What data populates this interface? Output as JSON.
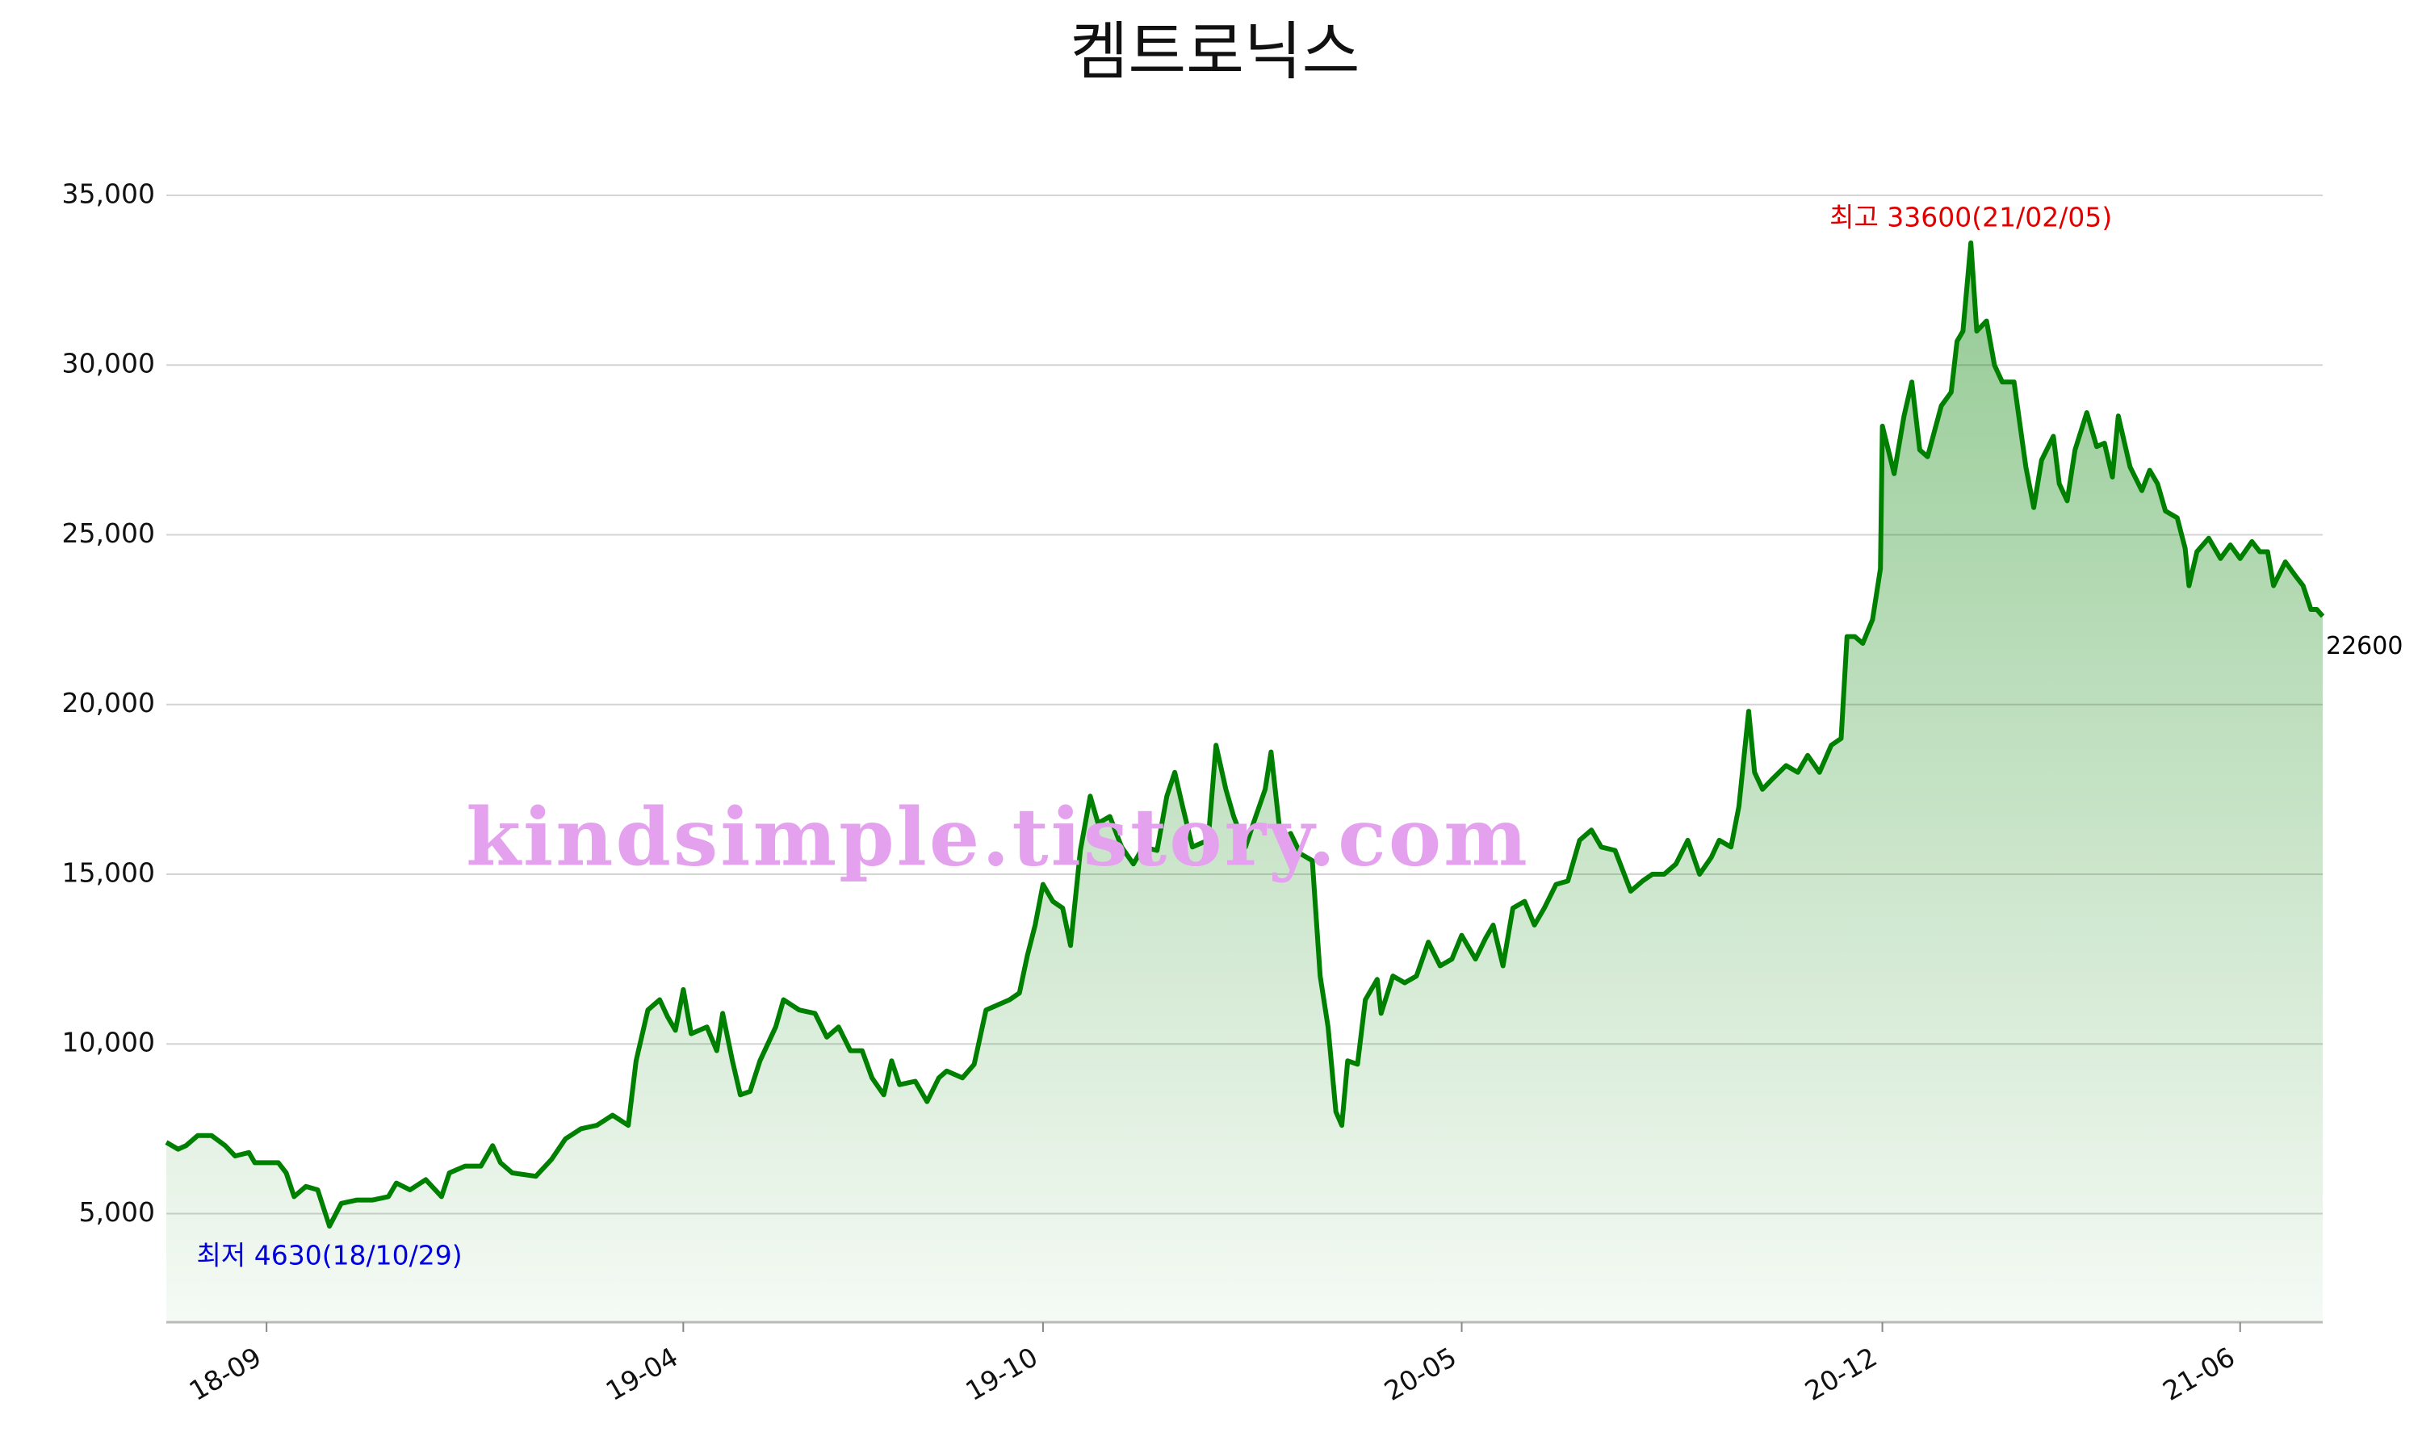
{
  "chart_data": {
    "type": "line",
    "title": "켐트로닉스",
    "x": [
      "18-07-12",
      "18-07-18",
      "18-07-22",
      "18-07-28",
      "18-08-04",
      "18-08-11",
      "18-08-16",
      "18-08-23",
      "18-08-26",
      "18-09-07",
      "18-09-11",
      "18-09-15",
      "18-09-21",
      "18-09-27",
      "18-10-03",
      "18-10-09",
      "18-10-17",
      "18-10-25",
      "18-11-02",
      "18-11-06",
      "18-11-13",
      "18-11-21",
      "18-11-29",
      "18-12-03",
      "18-12-11",
      "18-12-19",
      "18-12-25",
      "18-12-29",
      "19-01-04",
      "19-01-16",
      "19-01-24",
      "19-01-31",
      "19-02-08",
      "19-02-16",
      "19-02-24",
      "19-03-04",
      "19-03-08",
      "19-03-14",
      "19-03-20",
      "19-03-24",
      "19-03-28",
      "19-04-01",
      "19-04-05",
      "19-04-13",
      "19-04-18",
      "19-04-21",
      "19-04-26",
      "19-04-30",
      "19-05-05",
      "19-05-10",
      "19-05-18",
      "19-05-22",
      "19-05-30",
      "19-06-07",
      "19-06-13",
      "19-06-19",
      "19-06-25",
      "19-07-01",
      "19-07-06",
      "19-07-12",
      "19-07-16",
      "19-07-20",
      "19-07-28",
      "19-08-03",
      "19-08-09",
      "19-08-13",
      "19-08-21",
      "19-08-27",
      "19-09-02",
      "19-09-14",
      "19-09-19",
      "19-09-23",
      "19-09-27",
      "19-10-01",
      "19-10-06",
      "19-10-11",
      "19-10-15",
      "19-10-20",
      "19-10-25",
      "19-10-29",
      "19-11-04",
      "19-11-10",
      "19-11-16",
      "19-11-21",
      "19-11-28",
      "19-12-03",
      "19-12-07",
      "19-12-11",
      "19-12-16",
      "19-12-24",
      "19-12-28",
      "20-01-02",
      "20-01-06",
      "20-01-12",
      "20-01-16",
      "20-01-22",
      "20-01-25",
      "20-01-30",
      "20-02-04",
      "20-02-09",
      "20-02-15",
      "20-02-19",
      "20-02-23",
      "20-02-27",
      "20-03-01",
      "20-03-04",
      "20-03-09",
      "20-03-13",
      "20-03-19",
      "20-03-21",
      "20-03-27",
      "20-04-02",
      "20-04-08",
      "20-04-14",
      "20-04-20",
      "20-04-26",
      "20-05-01",
      "20-05-08",
      "20-05-13",
      "20-05-17",
      "20-05-22",
      "20-05-27",
      "20-06-02",
      "20-06-07",
      "20-06-12",
      "20-06-18",
      "20-06-24",
      "20-06-30",
      "20-07-06",
      "20-07-11",
      "20-07-18",
      "20-07-26",
      "20-08-01",
      "20-08-06",
      "20-08-12",
      "20-08-18",
      "20-08-24",
      "20-08-30",
      "20-09-05",
      "20-09-09",
      "20-09-15",
      "20-09-19",
      "20-09-24",
      "20-09-27",
      "20-10-01",
      "20-10-06",
      "20-10-13",
      "20-10-19",
      "20-10-24",
      "20-10-30",
      "20-11-05",
      "20-11-10",
      "20-11-13",
      "20-11-17",
      "20-11-21",
      "20-11-26",
      "20-11-30",
      "20-12-01",
      "20-12-07",
      "20-12-12",
      "20-12-16",
      "20-12-20",
      "20-12-24",
      "20-12-31",
      "21-01-05",
      "21-01-08",
      "21-01-11",
      "21-01-15",
      "21-01-18",
      "21-01-23",
      "21-01-27",
      "21-01-31",
      "21-02-06",
      "21-02-12",
      "21-02-16",
      "21-02-20",
      "21-02-26",
      "21-03-01",
      "21-03-05",
      "21-03-09",
      "21-03-15",
      "21-03-20",
      "21-03-24",
      "21-03-28",
      "21-03-31",
      "21-04-06",
      "21-04-12",
      "21-04-16",
      "21-04-20",
      "21-04-24",
      "21-04-30",
      "21-05-04",
      "21-05-06",
      "21-05-10",
      "21-05-16",
      "21-05-22",
      "21-05-27",
      "21-06-01",
      "21-06-07",
      "21-06-11",
      "21-06-15",
      "21-06-18",
      "21-06-24",
      "21-06-29",
      "21-07-03",
      "21-07-07",
      "21-07-10",
      "21-07-13"
    ],
    "series": [
      {
        "name": "켐트로닉스",
        "color": "#008000",
        "values": [
          7100,
          6900,
          7000,
          7300,
          7300,
          7000,
          6700,
          6800,
          6500,
          6500,
          6200,
          5500,
          5800,
          5700,
          4630,
          5300,
          5400,
          5400,
          5500,
          5900,
          5700,
          6000,
          5500,
          6200,
          6400,
          6400,
          7000,
          6500,
          6200,
          6100,
          6600,
          7200,
          7500,
          7600,
          7900,
          7600,
          9500,
          11000,
          11300,
          10800,
          10400,
          11600,
          10300,
          10500,
          9800,
          10900,
          9500,
          8500,
          8600,
          9500,
          10500,
          11300,
          11000,
          10900,
          10200,
          10500,
          9800,
          9800,
          9000,
          8500,
          9500,
          8800,
          8900,
          8300,
          9000,
          9200,
          9000,
          9400,
          11000,
          11300,
          11500,
          12600,
          13500,
          14700,
          14200,
          14000,
          12900,
          15700,
          17300,
          16500,
          16700,
          15800,
          15300,
          15800,
          15700,
          17300,
          18000,
          17000,
          15800,
          16000,
          18800,
          17500,
          16700,
          15800,
          16500,
          17500,
          18600,
          16000,
          16200,
          15600,
          15400,
          12000,
          10500,
          8000,
          7600,
          9500,
          9400,
          11300,
          11900,
          10900,
          12000,
          11800,
          12000,
          13000,
          12300,
          12500,
          13200,
          12500,
          13100,
          13500,
          12300,
          14000,
          14200,
          13500,
          14000,
          14700,
          14800,
          16000,
          16300,
          15800,
          15700,
          14500,
          14800,
          15000,
          15000,
          15300,
          16000,
          15000,
          15500,
          16000,
          15800,
          17000,
          19800,
          18000,
          17500,
          17800,
          18200,
          18000,
          18500,
          18000,
          18800,
          19000,
          22000,
          22000,
          21800,
          22500,
          24000,
          28200,
          26800,
          28500,
          29500,
          27500,
          27300,
          28800,
          29200,
          30700,
          31000,
          33600,
          31000,
          31300,
          30000,
          29500,
          29500,
          27000,
          25800,
          27200,
          27900,
          26500,
          26000,
          27500,
          28600,
          27600,
          27700,
          26700,
          28500,
          27000,
          26300,
          26900,
          26500,
          25700,
          25500,
          24600,
          23500,
          24500,
          24900,
          24300,
          24700,
          24300,
          24800,
          24500,
          24500,
          23500,
          24200,
          23800,
          23500,
          22800,
          22800,
          22600
        ]
      }
    ],
    "xlim": [
      "18-07-12",
      "21-07-13"
    ],
    "xticks": [
      "18-09",
      "19-04",
      "19-10",
      "20-05",
      "20-12",
      "21-06"
    ],
    "ylim": [
      1800,
      35000
    ],
    "yticks": [
      {
        "value": 5000,
        "label": "5,000"
      },
      {
        "value": 10000,
        "label": "10,000"
      },
      {
        "value": 15000,
        "label": "15,000"
      },
      {
        "value": 20000,
        "label": "20,000"
      },
      {
        "value": 25000,
        "label": "25,000"
      },
      {
        "value": 30000,
        "label": "30,000"
      },
      {
        "value": 35000,
        "label": "35,000"
      }
    ],
    "grid": true,
    "max_label": {
      "text": "최고 33600(21/02/05)",
      "color": "#e00000"
    },
    "min_label": {
      "text": "최저 4630(18/10/29)",
      "color": "#0000dd"
    },
    "last_label": {
      "text": "22600",
      "color": "#000000"
    },
    "watermark": "kindsimple.tistory.com"
  }
}
